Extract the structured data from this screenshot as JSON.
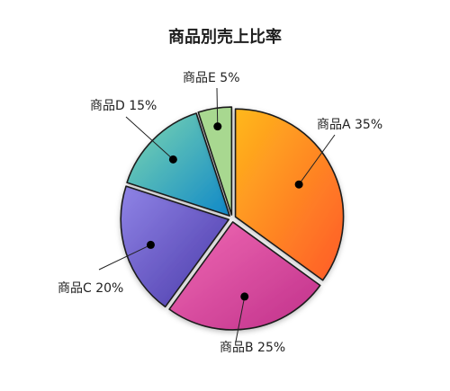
{
  "chart_data": {
    "type": "pie",
    "title": "商品別売上比率",
    "categories": [
      "商品A",
      "商品B",
      "商品C",
      "商品D",
      "商品E"
    ],
    "values": [
      35,
      25,
      20,
      15,
      5
    ],
    "labels": [
      "商品A 35%",
      "商品B 25%",
      "商品C 20%",
      "商品D 15%",
      "商品E 5%"
    ],
    "slice_colors": [
      [
        "#ffb81c",
        "#ff5a2a"
      ],
      [
        "#f06ab4",
        "#c0308a"
      ],
      [
        "#8f84e6",
        "#4a38a8"
      ],
      [
        "#7ed8b0",
        "#1088c8"
      ],
      [
        "#a8d890",
        "#a8d890"
      ]
    ],
    "outline_color": "#1e1e1e",
    "legend": "none",
    "label_style": "callout lines with dot markers"
  }
}
